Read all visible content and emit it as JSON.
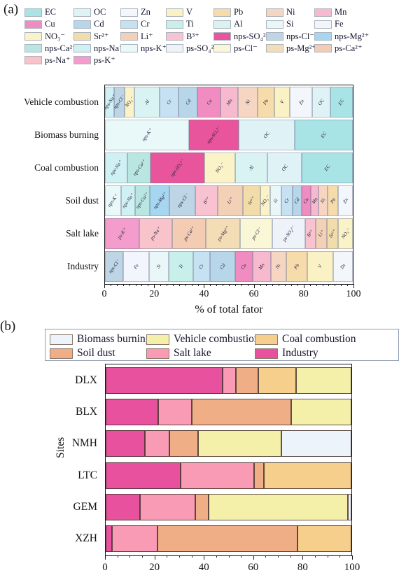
{
  "panels": {
    "a_label": "(a)",
    "b_label": "(b)"
  },
  "chart_data": [
    {
      "id": "a",
      "type": "bar",
      "orientation": "horizontal",
      "stacked": true,
      "xlabel": "% of total fator",
      "xlim": [
        0,
        100
      ],
      "xticks": [
        0,
        20,
        40,
        60,
        80,
        100
      ],
      "minor_tick_step": 2.5,
      "grid": false,
      "legend_position": "top",
      "legend_columns": 7,
      "legend_order": [
        "EC",
        "OC",
        "Zn",
        "V",
        "Pb",
        "Ni",
        "Mn",
        "Cu",
        "Cd",
        "Cr",
        "Ti",
        "Al",
        "Si",
        "Fe",
        "NO₃⁻",
        "Sr²⁺",
        "Li⁺",
        "B³⁺",
        "nps-SO₄²⁻",
        "nps-Cl⁻",
        "nps-Mg²⁺",
        "nps-Ca²⁺",
        "nps-Na⁺",
        "nps-K⁺",
        "ps-SO₄²⁻",
        "ps-Cl⁻",
        "ps-Mg²⁺",
        "ps-Ca²⁺",
        "ps-Na⁺",
        "ps-K⁺"
      ],
      "species": {
        "EC": {
          "color": "#A8E3E6",
          "hatch": "none"
        },
        "OC": {
          "color": "#DFF3F6",
          "hatch": "none"
        },
        "Zn": {
          "color": "#F3F6FB",
          "hatch": "none"
        },
        "V": {
          "color": "#FAF1C4",
          "hatch": "none"
        },
        "Pb": {
          "color": "#F6DCAB",
          "hatch": "none"
        },
        "Ni": {
          "color": "#F6D6C3",
          "hatch": "none"
        },
        "Mn": {
          "color": "#F6B9CD",
          "hatch": "cross"
        },
        "Cu": {
          "color": "#F18CC0",
          "hatch": "diag"
        },
        "Cd": {
          "color": "#B7D6E9",
          "hatch": "diag"
        },
        "Cr": {
          "color": "#C6E1F1",
          "hatch": "none"
        },
        "Ti": {
          "color": "#C9EFEA",
          "hatch": "none"
        },
        "Al": {
          "color": "#D9F3F3",
          "hatch": "none"
        },
        "Si": {
          "color": "#E9F7F9",
          "hatch": "none"
        },
        "Fe": {
          "color": "#F2F5FB",
          "hatch": "none"
        },
        "NO₃⁻": {
          "color": "#FAF3C8",
          "hatch": "none"
        },
        "Sr²⁺": {
          "color": "#F2DCA9",
          "hatch": "cross"
        },
        "Li⁺": {
          "color": "#F3D1B6",
          "hatch": "none"
        },
        "B³⁺": {
          "color": "#F9C2D0",
          "hatch": "none"
        },
        "nps-SO₄²⁻": {
          "color": "#E9559D",
          "hatch": "none"
        },
        "nps-Cl⁻": {
          "color": "#BED5E6",
          "hatch": "diag"
        },
        "nps-Mg²⁺": {
          "color": "#A7D6F1",
          "hatch": "none"
        },
        "nps-Ca²⁺": {
          "color": "#BAE6E1",
          "hatch": "none"
        },
        "nps-Na⁺": {
          "color": "#D0F1F3",
          "hatch": "none"
        },
        "nps-K⁺": {
          "color": "#E9F8F9",
          "hatch": "none"
        },
        "ps-SO₄²⁻": {
          "color": "#EEF2F9",
          "hatch": "none"
        },
        "ps-Cl⁻": {
          "color": "#FAF7D6",
          "hatch": "none"
        },
        "ps-Mg²⁺": {
          "color": "#F3DDB6",
          "hatch": "cross"
        },
        "ps-Ca²⁺": {
          "color": "#F3CCB3",
          "hatch": "cross"
        },
        "ps-Na⁺": {
          "color": "#F9C3CB",
          "hatch": "diag"
        },
        "ps-K⁺": {
          "color": "#F49CCC",
          "hatch": "none"
        }
      },
      "categories": [
        "Vehicle combustion",
        "Biomass burning",
        "Coal combustion",
        "Soil dust",
        "Salt lake",
        "Industry"
      ],
      "bars": [
        {
          "category": "Vehicle combustion",
          "segments": [
            [
              "nps-Na⁺",
              3.7
            ],
            [
              "nps-Cl⁻",
              4.2
            ],
            [
              "NO₃⁻",
              3.9
            ],
            [
              "Al",
              10.1
            ],
            [
              "Cr",
              7.9
            ],
            [
              "Cd",
              7.6
            ],
            [
              "Cu",
              9.2
            ],
            [
              "Mn",
              7.1
            ],
            [
              "Ni",
              7.8
            ],
            [
              "Pb",
              7.0
            ],
            [
              "V",
              6.2
            ],
            [
              "Zn",
              9.0
            ],
            [
              "OC",
              7.3
            ],
            [
              "EC",
              9.0
            ]
          ]
        },
        {
          "category": "Biomass burning",
          "segments": [
            [
              "nps-K⁺",
              34.0
            ],
            [
              "nps-SO₄²⁻",
              20.0
            ],
            [
              "OC",
              22.5
            ],
            [
              "EC",
              23.5
            ]
          ]
        },
        {
          "category": "Coal combustion",
          "segments": [
            [
              "nps-Na⁺",
              9.0
            ],
            [
              "nps-Ca²⁺",
              9.5
            ],
            [
              "nps-SO₄²⁻",
              21.5
            ],
            [
              "NO₃⁻",
              12.5
            ],
            [
              "Al",
              13.0
            ],
            [
              "OC",
              14.0
            ],
            [
              "EC",
              20.5
            ]
          ]
        },
        {
          "category": "Soil dust",
          "segments": [
            [
              "nps-K⁺",
              6.5
            ],
            [
              "nps-Na⁺",
              5.5
            ],
            [
              "nps-Ca²⁺",
              6.0
            ],
            [
              "nps-Mg²⁺",
              8.0
            ],
            [
              "nps-Cl⁻",
              10.3
            ],
            [
              "B³⁺",
              9.0
            ],
            [
              "Li⁺",
              10.0
            ],
            [
              "Sr²⁺",
              7.0
            ],
            [
              "NO₃⁻",
              4.0
            ],
            [
              "Si",
              4.5
            ],
            [
              "Cr",
              4.5
            ],
            [
              "Cd",
              3.7
            ],
            [
              "Cu",
              3.6
            ],
            [
              "Mn",
              3.2
            ],
            [
              "Ni",
              3.6
            ],
            [
              "Pb",
              4.2
            ],
            [
              "Zn",
              5.9
            ]
          ]
        },
        {
          "category": "Salt lake",
          "segments": [
            [
              "ps-K⁺",
              13.8
            ],
            [
              "ps-Na⁺",
              13.2
            ],
            [
              "ps-Ca²⁺",
              13.5
            ],
            [
              "ps-Mg²⁺",
              13.8
            ],
            [
              "ps-Cl⁻",
              12.9
            ],
            [
              "ps-SO₄²⁻",
              13.2
            ],
            [
              "B³⁺",
              4.2
            ],
            [
              "Li⁺",
              4.5
            ],
            [
              "Sr²⁺",
              4.5
            ],
            [
              "NO₃⁻",
              5.9
            ]
          ]
        },
        {
          "category": "Industry",
          "segments": [
            [
              "nps-Cl⁻",
              7.3
            ],
            [
              "Fe",
              10.4
            ],
            [
              "Si",
              7.9
            ],
            [
              "Ti",
              9.8
            ],
            [
              "Cr",
              6.7
            ],
            [
              "Cd",
              10.1
            ],
            [
              "Cu",
              7.0
            ],
            [
              "Mn",
              7.3
            ],
            [
              "Ni",
              6.2
            ],
            [
              "Pb",
              8.4
            ],
            [
              "V",
              10.4
            ],
            [
              "Zn",
              7.9
            ]
          ]
        }
      ]
    },
    {
      "id": "b",
      "type": "bar",
      "orientation": "horizontal",
      "stacked": true,
      "ylabel": "Sites",
      "xlim": [
        0,
        100
      ],
      "xticks": [
        0,
        20,
        40,
        60,
        80,
        100
      ],
      "minor_tick_step": 5,
      "grid": false,
      "legend_position": "top",
      "legend_rows": [
        [
          "Biomass burning",
          "Vehicle combustion",
          "Coal combustion"
        ],
        [
          "Soil dust",
          "Salt lake",
          "Industry"
        ]
      ],
      "colors": {
        "Biomass burning": "#EDF3FB",
        "Vehicle combustion": "#F5F0A9",
        "Coal combustion": "#F6CF8D",
        "Soil dust": "#EFAE85",
        "Salt lake": "#F99BB5",
        "Industry": "#E7519E"
      },
      "stack_order": [
        "Industry",
        "Salt lake",
        "Soil dust",
        "Coal combustion",
        "Vehicle combustion",
        "Biomass burning"
      ],
      "categories": [
        "DLX",
        "BLX",
        "NMH",
        "LTC",
        "GEM",
        "XZH"
      ],
      "series": [
        {
          "name": "Industry",
          "values": [
            47.5,
            21.5,
            16.0,
            30.5,
            14.0,
            2.5
          ]
        },
        {
          "name": "Salt lake",
          "values": [
            5.5,
            13.5,
            10.0,
            30.0,
            22.5,
            18.5
          ]
        },
        {
          "name": "Soil dust",
          "values": [
            9.0,
            40.5,
            11.5,
            4.0,
            5.5,
            57.0
          ]
        },
        {
          "name": "Coal combustion",
          "values": [
            15.5,
            0,
            0,
            35.5,
            0,
            22.0
          ]
        },
        {
          "name": "Vehicle combustion",
          "values": [
            22.5,
            24.5,
            34.0,
            0,
            56.5,
            0
          ]
        },
        {
          "name": "Biomass burning",
          "values": [
            0,
            0,
            28.5,
            0,
            1.5,
            0
          ]
        }
      ]
    }
  ]
}
